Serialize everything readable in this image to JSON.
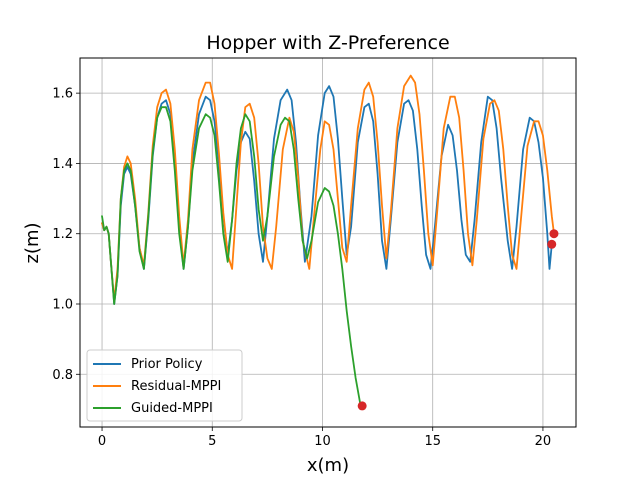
{
  "chart_data": {
    "type": "line",
    "title": "Hopper with Z-Preference",
    "xlabel": "x(m)",
    "ylabel": "z(m)",
    "xlim": [
      -1.0,
      21.5
    ],
    "ylim": [
      0.65,
      1.7
    ],
    "xticks": [
      0,
      5,
      10,
      15,
      20
    ],
    "yticks": [
      0.8,
      1.0,
      1.2,
      1.4,
      1.6
    ],
    "xtick_labels": [
      "0",
      "5",
      "10",
      "15",
      "20"
    ],
    "ytick_labels": [
      "0.8",
      "1.0",
      "1.2",
      "1.4",
      "1.6"
    ],
    "grid": true,
    "legend_position": "lower-left",
    "series": [
      {
        "name": "Prior Policy",
        "color": "#1f77b4",
        "points": [
          [
            0.0,
            1.23
          ],
          [
            0.1,
            1.21
          ],
          [
            0.2,
            1.22
          ],
          [
            0.3,
            1.2
          ],
          [
            0.4,
            1.12
          ],
          [
            0.55,
            1.0
          ],
          [
            0.7,
            1.08
          ],
          [
            0.85,
            1.28
          ],
          [
            1.0,
            1.37
          ],
          [
            1.15,
            1.39
          ],
          [
            1.3,
            1.37
          ],
          [
            1.5,
            1.28
          ],
          [
            1.7,
            1.16
          ],
          [
            1.9,
            1.1
          ],
          [
            2.1,
            1.24
          ],
          [
            2.3,
            1.42
          ],
          [
            2.5,
            1.53
          ],
          [
            2.7,
            1.57
          ],
          [
            2.9,
            1.58
          ],
          [
            3.1,
            1.54
          ],
          [
            3.3,
            1.4
          ],
          [
            3.5,
            1.22
          ],
          [
            3.7,
            1.1
          ],
          [
            3.9,
            1.22
          ],
          [
            4.1,
            1.4
          ],
          [
            4.4,
            1.54
          ],
          [
            4.7,
            1.59
          ],
          [
            4.9,
            1.58
          ],
          [
            5.1,
            1.52
          ],
          [
            5.3,
            1.4
          ],
          [
            5.5,
            1.25
          ],
          [
            5.7,
            1.14
          ],
          [
            5.9,
            1.24
          ],
          [
            6.1,
            1.38
          ],
          [
            6.3,
            1.46
          ],
          [
            6.5,
            1.49
          ],
          [
            6.7,
            1.47
          ],
          [
            6.9,
            1.35
          ],
          [
            7.1,
            1.2
          ],
          [
            7.3,
            1.12
          ],
          [
            7.5,
            1.25
          ],
          [
            7.8,
            1.47
          ],
          [
            8.1,
            1.58
          ],
          [
            8.4,
            1.61
          ],
          [
            8.6,
            1.58
          ],
          [
            8.8,
            1.46
          ],
          [
            9.0,
            1.28
          ],
          [
            9.2,
            1.12
          ],
          [
            9.5,
            1.25
          ],
          [
            9.8,
            1.48
          ],
          [
            10.1,
            1.6
          ],
          [
            10.3,
            1.62
          ],
          [
            10.5,
            1.59
          ],
          [
            10.7,
            1.47
          ],
          [
            10.9,
            1.3
          ],
          [
            11.1,
            1.14
          ],
          [
            11.3,
            1.22
          ],
          [
            11.6,
            1.46
          ],
          [
            11.9,
            1.56
          ],
          [
            12.1,
            1.57
          ],
          [
            12.3,
            1.52
          ],
          [
            12.5,
            1.37
          ],
          [
            12.7,
            1.18
          ],
          [
            12.9,
            1.1
          ],
          [
            13.1,
            1.24
          ],
          [
            13.4,
            1.46
          ],
          [
            13.7,
            1.57
          ],
          [
            13.9,
            1.58
          ],
          [
            14.1,
            1.55
          ],
          [
            14.3,
            1.44
          ],
          [
            14.5,
            1.28
          ],
          [
            14.7,
            1.14
          ],
          [
            14.9,
            1.1
          ],
          [
            15.1,
            1.22
          ],
          [
            15.4,
            1.42
          ],
          [
            15.7,
            1.51
          ],
          [
            15.9,
            1.48
          ],
          [
            16.1,
            1.38
          ],
          [
            16.3,
            1.24
          ],
          [
            16.5,
            1.14
          ],
          [
            16.7,
            1.12
          ],
          [
            16.9,
            1.24
          ],
          [
            17.2,
            1.46
          ],
          [
            17.5,
            1.59
          ],
          [
            17.7,
            1.58
          ],
          [
            17.9,
            1.5
          ],
          [
            18.1,
            1.36
          ],
          [
            18.4,
            1.18
          ],
          [
            18.6,
            1.1
          ],
          [
            18.8,
            1.22
          ],
          [
            19.1,
            1.44
          ],
          [
            19.4,
            1.53
          ],
          [
            19.6,
            1.52
          ],
          [
            19.8,
            1.46
          ],
          [
            20.0,
            1.36
          ],
          [
            20.2,
            1.2
          ],
          [
            20.3,
            1.1
          ],
          [
            20.4,
            1.17
          ]
        ],
        "end_marker": [
          20.4,
          1.17
        ]
      },
      {
        "name": "Residual-MPPI",
        "color": "#ff7f0e",
        "points": [
          [
            0.0,
            1.23
          ],
          [
            0.1,
            1.21
          ],
          [
            0.2,
            1.22
          ],
          [
            0.3,
            1.2
          ],
          [
            0.4,
            1.12
          ],
          [
            0.55,
            1.01
          ],
          [
            0.7,
            1.1
          ],
          [
            0.85,
            1.3
          ],
          [
            1.0,
            1.39
          ],
          [
            1.15,
            1.42
          ],
          [
            1.3,
            1.4
          ],
          [
            1.5,
            1.3
          ],
          [
            1.7,
            1.16
          ],
          [
            1.9,
            1.11
          ],
          [
            2.1,
            1.26
          ],
          [
            2.3,
            1.45
          ],
          [
            2.5,
            1.56
          ],
          [
            2.7,
            1.6
          ],
          [
            2.9,
            1.61
          ],
          [
            3.1,
            1.57
          ],
          [
            3.3,
            1.44
          ],
          [
            3.5,
            1.25
          ],
          [
            3.7,
            1.11
          ],
          [
            3.9,
            1.24
          ],
          [
            4.1,
            1.44
          ],
          [
            4.4,
            1.58
          ],
          [
            4.7,
            1.63
          ],
          [
            4.9,
            1.63
          ],
          [
            5.1,
            1.57
          ],
          [
            5.3,
            1.43
          ],
          [
            5.5,
            1.26
          ],
          [
            5.7,
            1.14
          ],
          [
            5.9,
            1.1
          ],
          [
            6.1,
            1.28
          ],
          [
            6.3,
            1.46
          ],
          [
            6.5,
            1.56
          ],
          [
            6.7,
            1.57
          ],
          [
            6.9,
            1.53
          ],
          [
            7.1,
            1.4
          ],
          [
            7.3,
            1.22
          ],
          [
            7.5,
            1.13
          ],
          [
            7.7,
            1.1
          ],
          [
            7.9,
            1.22
          ],
          [
            8.2,
            1.44
          ],
          [
            8.5,
            1.53
          ],
          [
            8.7,
            1.49
          ],
          [
            8.9,
            1.36
          ],
          [
            9.1,
            1.18
          ],
          [
            9.4,
            1.1
          ],
          [
            9.6,
            1.24
          ],
          [
            9.9,
            1.44
          ],
          [
            10.1,
            1.52
          ],
          [
            10.3,
            1.51
          ],
          [
            10.5,
            1.44
          ],
          [
            10.7,
            1.3
          ],
          [
            10.9,
            1.16
          ],
          [
            11.1,
            1.12
          ],
          [
            11.3,
            1.28
          ],
          [
            11.6,
            1.5
          ],
          [
            11.9,
            1.61
          ],
          [
            12.1,
            1.63
          ],
          [
            12.3,
            1.59
          ],
          [
            12.5,
            1.46
          ],
          [
            12.7,
            1.28
          ],
          [
            12.9,
            1.13
          ],
          [
            13.1,
            1.26
          ],
          [
            13.4,
            1.5
          ],
          [
            13.7,
            1.62
          ],
          [
            14.0,
            1.65
          ],
          [
            14.2,
            1.63
          ],
          [
            14.4,
            1.54
          ],
          [
            14.6,
            1.38
          ],
          [
            14.8,
            1.2
          ],
          [
            15.0,
            1.11
          ],
          [
            15.2,
            1.26
          ],
          [
            15.5,
            1.5
          ],
          [
            15.8,
            1.59
          ],
          [
            16.0,
            1.59
          ],
          [
            16.2,
            1.53
          ],
          [
            16.4,
            1.38
          ],
          [
            16.6,
            1.2
          ],
          [
            16.8,
            1.11
          ],
          [
            17.0,
            1.24
          ],
          [
            17.3,
            1.47
          ],
          [
            17.6,
            1.57
          ],
          [
            17.8,
            1.58
          ],
          [
            18.0,
            1.55
          ],
          [
            18.2,
            1.44
          ],
          [
            18.4,
            1.28
          ],
          [
            18.6,
            1.14
          ],
          [
            18.8,
            1.1
          ],
          [
            19.0,
            1.24
          ],
          [
            19.3,
            1.45
          ],
          [
            19.6,
            1.52
          ],
          [
            19.8,
            1.52
          ],
          [
            20.0,
            1.48
          ],
          [
            20.2,
            1.38
          ],
          [
            20.4,
            1.25
          ],
          [
            20.5,
            1.2
          ]
        ],
        "end_marker": [
          20.5,
          1.2
        ]
      },
      {
        "name": "Guided-MPPI",
        "color": "#2ca02c",
        "points": [
          [
            0.0,
            1.25
          ],
          [
            0.1,
            1.21
          ],
          [
            0.2,
            1.22
          ],
          [
            0.3,
            1.2
          ],
          [
            0.4,
            1.12
          ],
          [
            0.55,
            1.0
          ],
          [
            0.7,
            1.08
          ],
          [
            0.85,
            1.3
          ],
          [
            1.0,
            1.38
          ],
          [
            1.15,
            1.4
          ],
          [
            1.3,
            1.38
          ],
          [
            1.5,
            1.28
          ],
          [
            1.7,
            1.15
          ],
          [
            1.9,
            1.1
          ],
          [
            2.1,
            1.25
          ],
          [
            2.3,
            1.43
          ],
          [
            2.5,
            1.53
          ],
          [
            2.7,
            1.56
          ],
          [
            2.9,
            1.56
          ],
          [
            3.1,
            1.52
          ],
          [
            3.3,
            1.38
          ],
          [
            3.5,
            1.2
          ],
          [
            3.7,
            1.1
          ],
          [
            3.9,
            1.22
          ],
          [
            4.1,
            1.38
          ],
          [
            4.4,
            1.5
          ],
          [
            4.7,
            1.54
          ],
          [
            4.9,
            1.53
          ],
          [
            5.1,
            1.48
          ],
          [
            5.3,
            1.35
          ],
          [
            5.5,
            1.2
          ],
          [
            5.7,
            1.12
          ],
          [
            5.9,
            1.24
          ],
          [
            6.1,
            1.4
          ],
          [
            6.3,
            1.5
          ],
          [
            6.5,
            1.54
          ],
          [
            6.7,
            1.52
          ],
          [
            6.9,
            1.42
          ],
          [
            7.1,
            1.27
          ],
          [
            7.3,
            1.18
          ],
          [
            7.5,
            1.25
          ],
          [
            7.8,
            1.42
          ],
          [
            8.1,
            1.51
          ],
          [
            8.3,
            1.53
          ],
          [
            8.5,
            1.52
          ],
          [
            8.7,
            1.44
          ],
          [
            8.9,
            1.3
          ],
          [
            9.1,
            1.18
          ],
          [
            9.3,
            1.13
          ],
          [
            9.5,
            1.18
          ],
          [
            9.8,
            1.29
          ],
          [
            10.1,
            1.33
          ],
          [
            10.3,
            1.32
          ],
          [
            10.5,
            1.28
          ],
          [
            10.7,
            1.2
          ],
          [
            10.9,
            1.1
          ],
          [
            11.1,
            0.98
          ],
          [
            11.3,
            0.88
          ],
          [
            11.5,
            0.79
          ],
          [
            11.7,
            0.72
          ],
          [
            11.8,
            0.71
          ]
        ],
        "end_marker": [
          11.8,
          0.71
        ]
      }
    ],
    "end_marker_color": "#d62728"
  }
}
